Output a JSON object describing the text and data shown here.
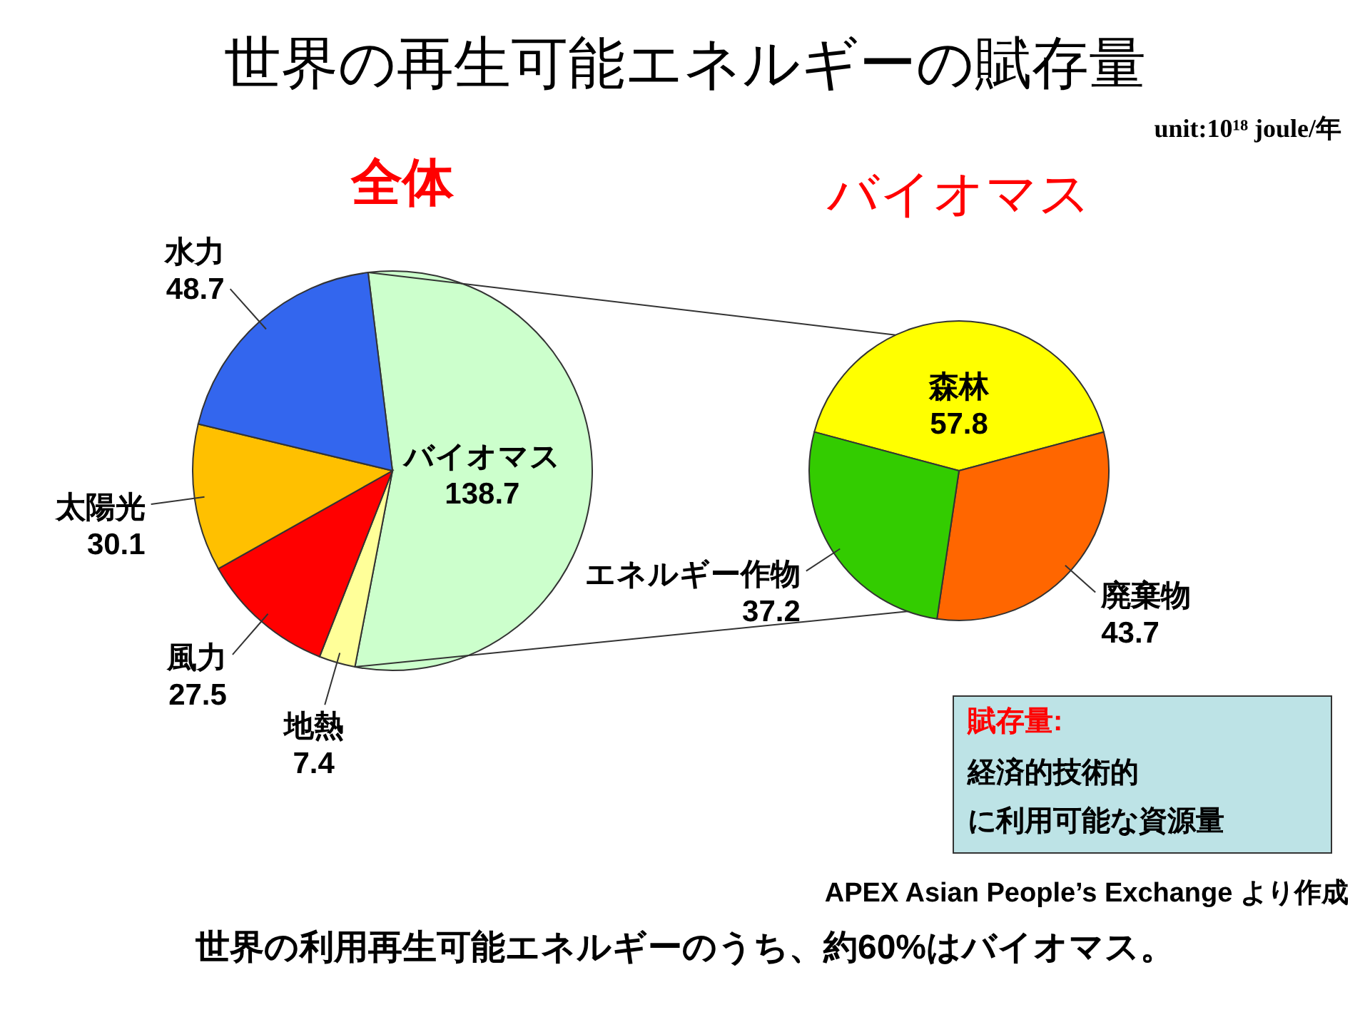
{
  "chart_data": [
    {
      "type": "pie",
      "title": "世界の再生可能エネルギーの賦存量",
      "subtitle": "全体",
      "categories": [
        "バイオマス",
        "地熱",
        "風力",
        "太陽光",
        "水力"
      ],
      "values": [
        138.7,
        7.4,
        27.5,
        30.1,
        48.7
      ],
      "colors": [
        "#ccffcc",
        "#ffff99",
        "#ff0000",
        "#ffc000",
        "#3366ee"
      ],
      "data_labels": true,
      "annotations": [
        "unit:10¹⁸ joule/年",
        "賦存量:",
        "経済的技術的",
        "に利用可能な資源量",
        "APEX Asian People’s Exchange より作成",
        "世界の利用再生可能エネルギーのうち、約60%はバイオマス。"
      ]
    },
    {
      "type": "pie",
      "title": "バイオマス",
      "categories": [
        "森林",
        "廃棄物",
        "エネルギー作物"
      ],
      "values": [
        57.8,
        43.7,
        37.2
      ],
      "colors": [
        "#ffff00",
        "#ff6600",
        "#33cc00"
      ],
      "data_labels": true
    }
  ]
}
